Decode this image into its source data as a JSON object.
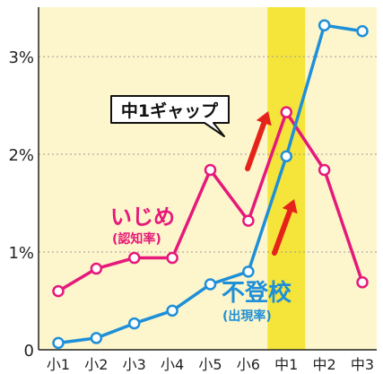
{
  "chart_data": {
    "type": "line",
    "categories": [
      "小1",
      "小2",
      "小3",
      "小4",
      "小5",
      "小6",
      "中1",
      "中2",
      "中3"
    ],
    "y_ticks": [
      "0",
      "1%",
      "2%",
      "3%"
    ],
    "ylim": [
      0,
      3.5
    ],
    "grid": "horizontal dotted",
    "highlight_category": "中1",
    "series": [
      {
        "name": "いじめ",
        "note": "(認知率)",
        "color": "#e6197a",
        "values": [
          0.6,
          0.83,
          0.94,
          0.94,
          1.84,
          1.32,
          2.43,
          1.84,
          0.69
        ]
      },
      {
        "name": "不登校",
        "note": "(出現率)",
        "color": "#1e8fd8",
        "values": [
          0.07,
          0.12,
          0.27,
          0.4,
          0.67,
          0.8,
          1.98,
          3.32,
          3.26
        ]
      }
    ],
    "annotation": "中1ギャップ"
  },
  "colors": {
    "plot_bg": "#fdf6cc",
    "highlight": "#f5e53a",
    "arrow": "#e5231b"
  }
}
